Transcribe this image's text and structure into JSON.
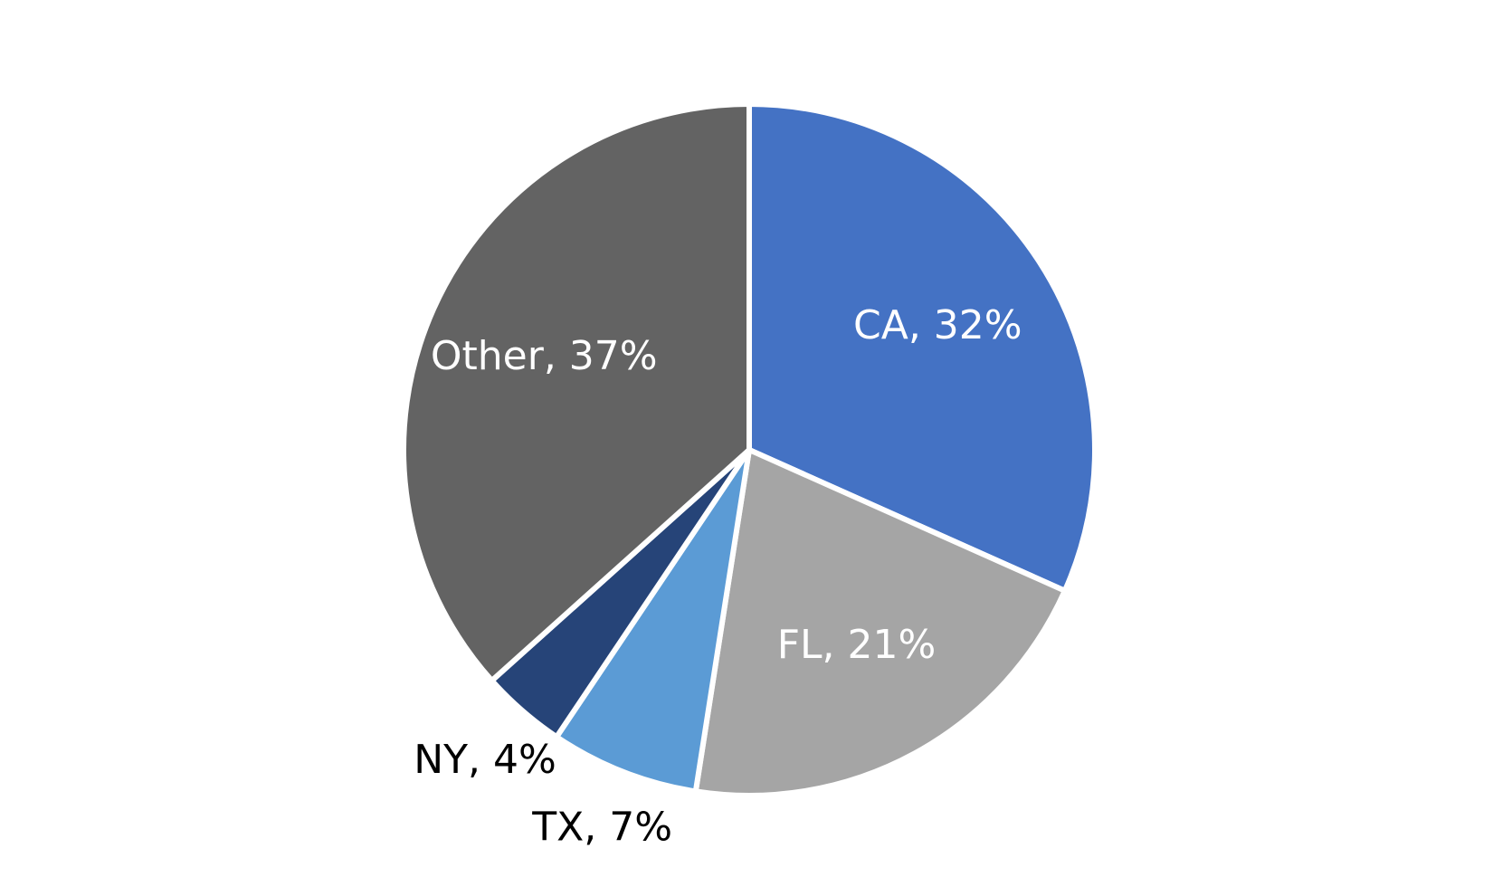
{
  "chart_data": {
    "type": "pie",
    "title": "",
    "start_angle_deg": 0,
    "direction": "clockwise",
    "slices": [
      {
        "label": "CA, 32%",
        "category": "CA",
        "value": 32,
        "color": "#4472C4",
        "label_color": "#ffffff",
        "label_position": "inside"
      },
      {
        "label": "FL, 21%",
        "category": "FL",
        "value": 21,
        "color": "#A5A5A5",
        "label_color": "#ffffff",
        "label_position": "inside"
      },
      {
        "label": "TX, 7%",
        "category": "TX",
        "value": 7,
        "color": "#5B9BD5",
        "label_color": "#000000",
        "label_position": "outside"
      },
      {
        "label": "NY, 4%",
        "category": "NY",
        "value": 4,
        "color": "#264478",
        "label_color": "#000000",
        "label_position": "outside"
      },
      {
        "label": "Other, 37%",
        "category": "Other",
        "value": 37,
        "color": "#636363",
        "label_color": "#ffffff",
        "label_position": "inside"
      }
    ]
  }
}
